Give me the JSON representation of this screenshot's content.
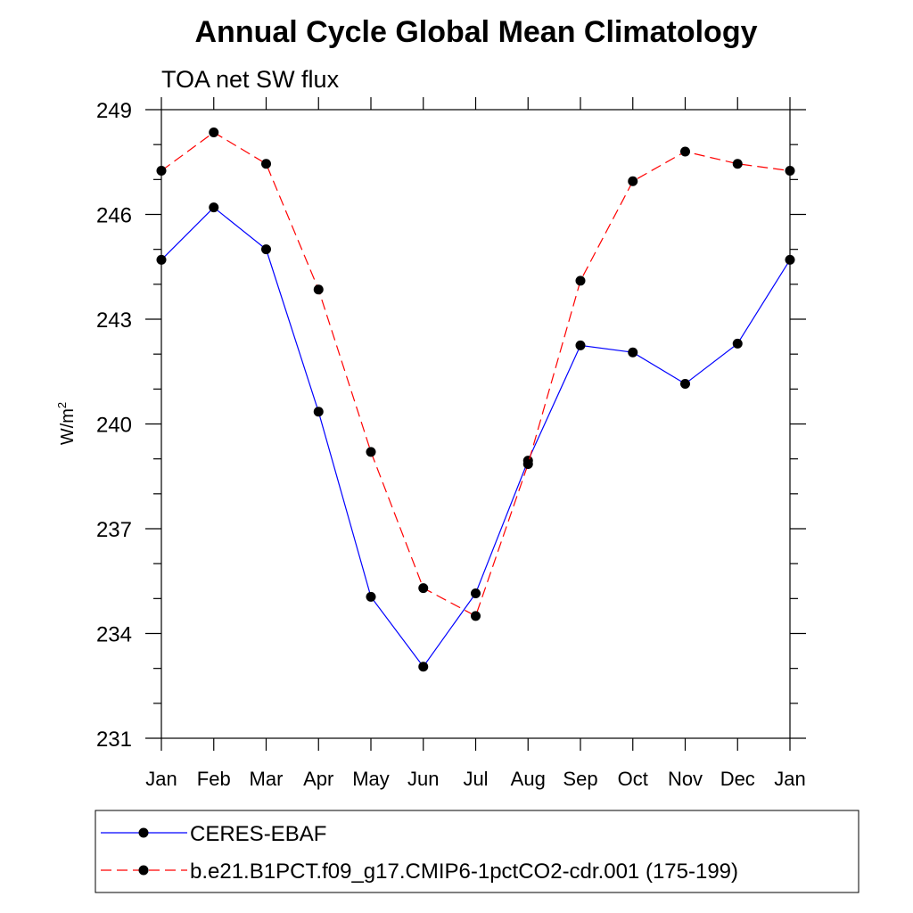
{
  "chart_data": {
    "type": "line",
    "title": "Annual Cycle Global Mean Climatology",
    "subtitle": "TOA net SW flux",
    "xlabel": "",
    "ylabel_base": "W/m",
    "ylabel_sup": "2",
    "categories": [
      "Jan",
      "Feb",
      "Mar",
      "Apr",
      "May",
      "Jun",
      "Jul",
      "Aug",
      "Sep",
      "Oct",
      "Nov",
      "Dec",
      "Jan"
    ],
    "ylim": [
      231,
      249
    ],
    "yticks": [
      231,
      234,
      237,
      240,
      243,
      246,
      249
    ],
    "ytick_labels": [
      "231",
      "234",
      "237",
      "240",
      "243",
      "246",
      "249"
    ],
    "yminor_step": 1,
    "grid": false,
    "legend_position": "bottom",
    "series": [
      {
        "name": "CERES-EBAF",
        "color": "#0000ff",
        "dash": "solid",
        "marker": "filled-circle",
        "values": [
          244.7,
          246.2,
          245.0,
          240.35,
          235.05,
          233.05,
          235.15,
          238.95,
          242.25,
          242.05,
          241.15,
          242.3,
          244.7
        ]
      },
      {
        "name": "b.e21.B1PCT.f09_g17.CMIP6-1pctCO2-cdr.001 (175-199)",
        "color": "#ff0000",
        "dash": "dashed",
        "marker": "filled-circle",
        "values": [
          247.25,
          248.35,
          247.45,
          243.85,
          239.2,
          235.3,
          234.5,
          238.85,
          244.1,
          246.95,
          247.8,
          247.45,
          247.25
        ]
      }
    ]
  }
}
